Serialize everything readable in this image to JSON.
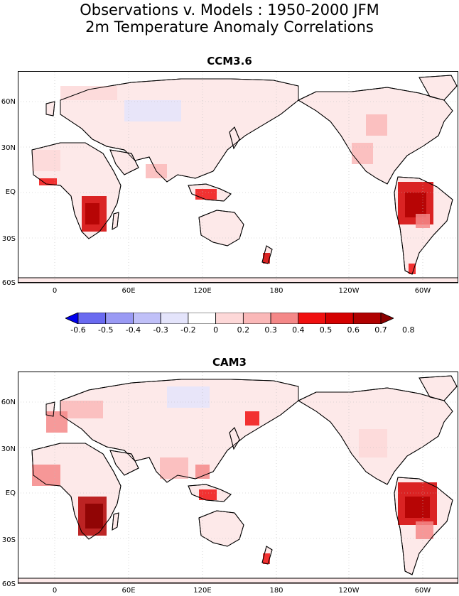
{
  "title_line1": "Observations v. Models : 1950-2000 JFM",
  "title_line2": "2m Temperature Anomaly Correlations",
  "panels": [
    {
      "title": "CCM3.6"
    },
    {
      "title": "CAM3"
    }
  ],
  "y_ticks": [
    "60N",
    "30N",
    "EQ",
    "30S",
    "60S"
  ],
  "x_ticks": [
    "0",
    "60E",
    "120E",
    "180",
    "120W",
    "60W"
  ],
  "colorbar": {
    "labels": [
      "-0.6",
      "-0.5",
      "-0.4",
      "-0.3",
      "-0.2",
      "0",
      "0.2",
      "0.3",
      "0.4",
      "0.5",
      "0.6",
      "0.7",
      "0.8"
    ],
    "colors": [
      "#0000ee",
      "#6a6af0",
      "#9a9af4",
      "#c0c0f8",
      "#e4e4fb",
      "#ffffff",
      "#fdd8d8",
      "#fab8b8",
      "#f48888",
      "#f01010",
      "#d40000",
      "#b00000",
      "#8a0000"
    ]
  },
  "land_color": "#fde9e9",
  "ocean_color": "#ffffff"
}
